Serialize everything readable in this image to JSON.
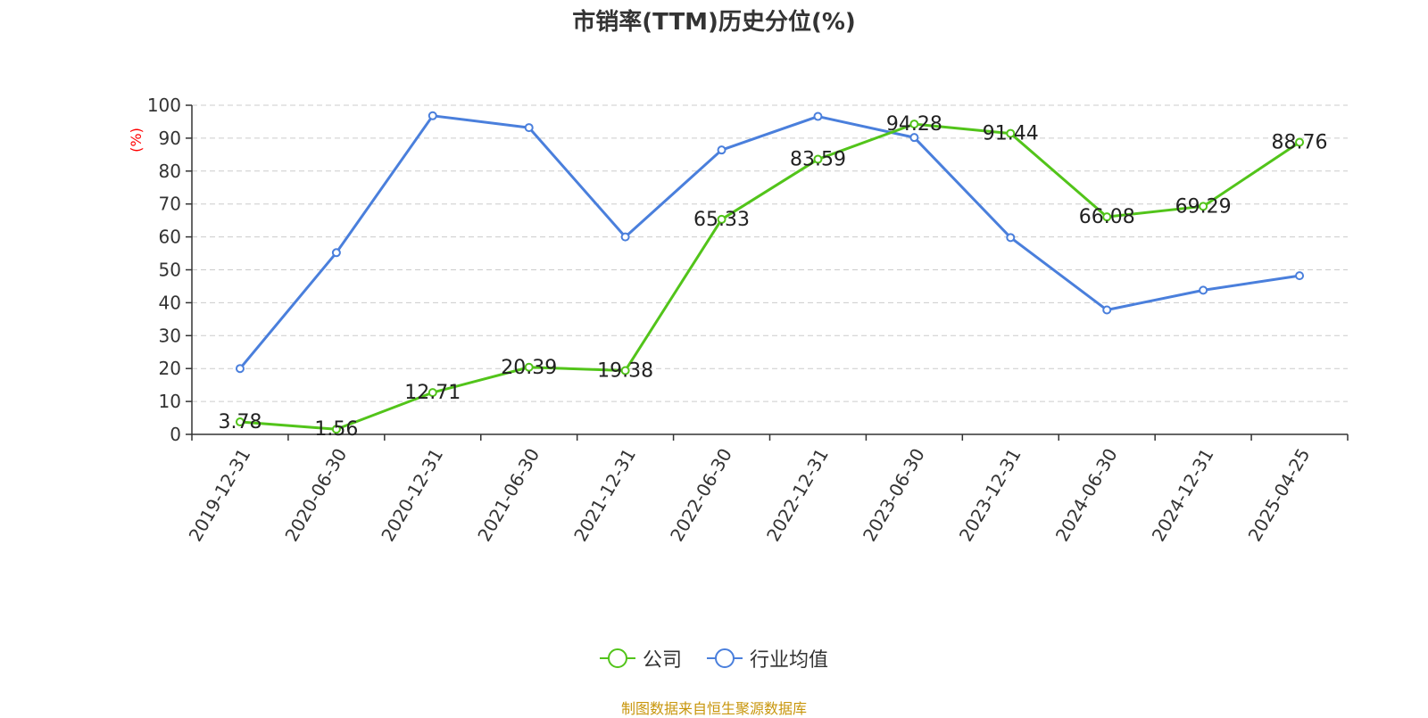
{
  "chart_data": {
    "type": "line",
    "title": "市销率(TTM)历史分位(%)",
    "ylabel": "(%)",
    "xlabel": "",
    "ylim": [
      0,
      100
    ],
    "yticks": [
      0,
      10,
      20,
      30,
      40,
      50,
      60,
      70,
      80,
      90,
      100
    ],
    "grid": true,
    "legend_position": "bottom",
    "categories": [
      "2019-12-31",
      "2020-06-30",
      "2020-12-31",
      "2021-06-30",
      "2021-12-31",
      "2022-06-30",
      "2022-12-31",
      "2023-06-30",
      "2023-12-31",
      "2024-06-30",
      "2024-12-31",
      "2025-04-25"
    ],
    "series": [
      {
        "name": "公司",
        "color": "#52c41a",
        "values": [
          3.78,
          1.56,
          12.71,
          20.39,
          19.38,
          65.33,
          83.59,
          94.28,
          91.44,
          66.08,
          69.29,
          88.76
        ],
        "labels": [
          "3.78",
          "1.56",
          "12.71",
          "20.39",
          "19.38",
          "65.33",
          "83.59",
          "94.28",
          "91.44",
          "66.08",
          "69.29",
          "88.76"
        ]
      },
      {
        "name": "行业均值",
        "color": "#4a7fdc",
        "values": [
          20,
          55.2,
          96.8,
          93.2,
          60,
          86.4,
          96.6,
          90.2,
          59.8,
          37.8,
          43.8,
          48.2
        ]
      }
    ]
  },
  "source_text": "制图数据来自恒生聚源数据库"
}
